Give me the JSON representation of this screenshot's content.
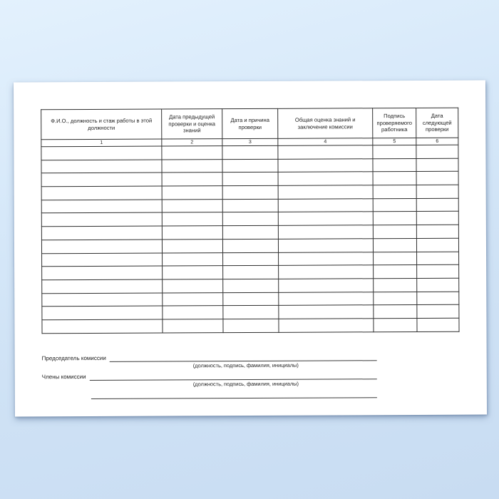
{
  "canvas": {
    "background_top_color": "#e3f1fd",
    "background_bottom_color": "#c8dcf2",
    "paper_color": "#ffffff",
    "border_color": "#2f2f2f",
    "text_color": "#1d1d1d"
  },
  "table": {
    "columns": [
      {
        "header": "Ф.И.О., должность и стаж работы в этой должности",
        "number": "1"
      },
      {
        "header": "Дата предыдущей проверки и оценка знаний",
        "number": "2"
      },
      {
        "header": "Дата и причина проверки",
        "number": "3"
      },
      {
        "header": "Общая оценка знаний и заключение комиссии",
        "number": "4"
      },
      {
        "header": "Подпись проверяемого работника",
        "number": "5"
      },
      {
        "header": "Дата следующей проверки",
        "number": "6"
      }
    ],
    "empty_row_count": 14
  },
  "signature_block": {
    "chairman_label": "Председатель комиссии",
    "chairman_caption": "(должность, подпись, фамилия, инициалы)",
    "members_label": "Члены комиссии",
    "members_caption": "(должность, подпись, фамилия, инициалы)"
  }
}
